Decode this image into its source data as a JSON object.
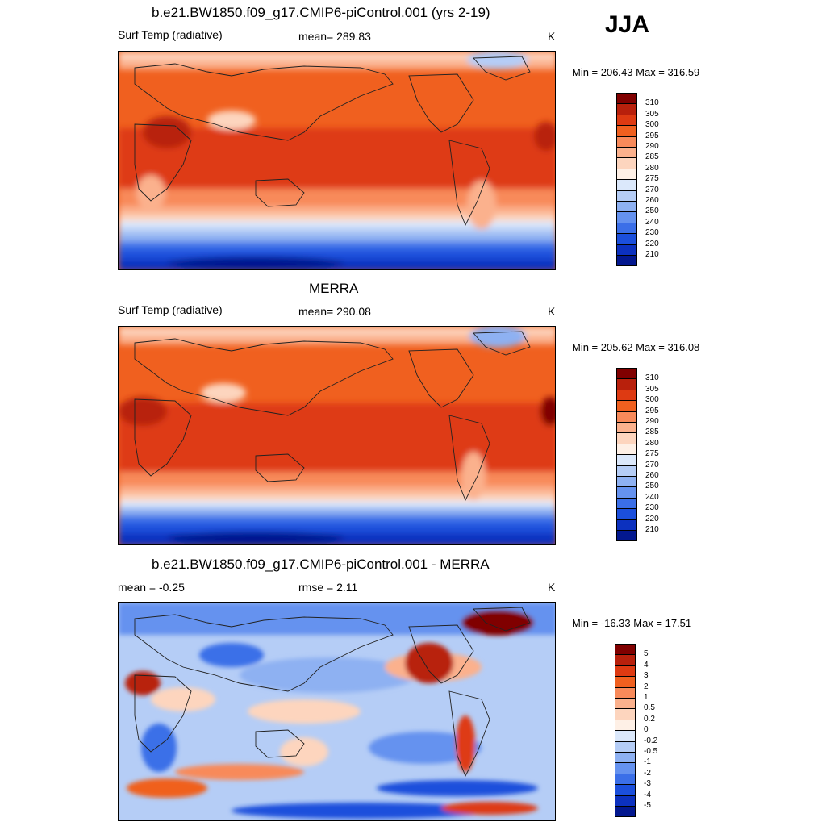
{
  "season": "JJA",
  "panels": [
    {
      "title": "b.e21.BW1850.f09_g17.CMIP6-piControl.001 (yrs 2-19)",
      "left_label": "Surf Temp (radiative)",
      "center_label": "mean= 289.83",
      "units": "K",
      "minmax": "Min = 206.43 Max = 316.59",
      "colorbar": {
        "colors": [
          "#800000",
          "#b8200c",
          "#de3a12",
          "#f0601f",
          "#f88a5a",
          "#fbb18d",
          "#fdd5be",
          "#fef0e6",
          "#dbe8fb",
          "#b5cdf6",
          "#8eb1f2",
          "#6592ef",
          "#3b6fe8",
          "#1b4fdc",
          "#0c31bf",
          "#03188f"
        ],
        "labels": [
          "310",
          "305",
          "300",
          "295",
          "290",
          "285",
          "280",
          "275",
          "270",
          "260",
          "250",
          "240",
          "230",
          "220",
          "210"
        ]
      }
    },
    {
      "title": "MERRA",
      "left_label": "Surf Temp (radiative)",
      "center_label": "mean= 290.08",
      "units": "K",
      "minmax": "Min = 205.62 Max = 316.08",
      "colorbar": {
        "colors": [
          "#800000",
          "#b8200c",
          "#de3a12",
          "#f0601f",
          "#f88a5a",
          "#fbb18d",
          "#fdd5be",
          "#fef0e6",
          "#dbe8fb",
          "#b5cdf6",
          "#8eb1f2",
          "#6592ef",
          "#3b6fe8",
          "#1b4fdc",
          "#0c31bf",
          "#03188f"
        ],
        "labels": [
          "310",
          "305",
          "300",
          "295",
          "290",
          "285",
          "280",
          "275",
          "270",
          "260",
          "250",
          "240",
          "230",
          "220",
          "210"
        ]
      }
    },
    {
      "title": "b.e21.BW1850.f09_g17.CMIP6-piControl.001 - MERRA",
      "left_label": "mean =  -0.25",
      "center_label": "rmse =   2.11",
      "units": "K",
      "minmax": "Min = -16.33 Max =  17.51",
      "colorbar": {
        "colors": [
          "#800000",
          "#b8200c",
          "#de3a12",
          "#f0601f",
          "#f88a5a",
          "#fbb18d",
          "#fdd5be",
          "#fef0e6",
          "#dbe8fb",
          "#b5cdf6",
          "#8eb1f2",
          "#6592ef",
          "#3b6fe8",
          "#1b4fdc",
          "#0c31bf",
          "#03188f"
        ],
        "labels": [
          "5",
          "4",
          "3",
          "2",
          "1",
          "0.5",
          "0.2",
          "0",
          "-0.2",
          "-0.5",
          "-1",
          "-2",
          "-3",
          "-4",
          "-5"
        ]
      }
    }
  ]
}
